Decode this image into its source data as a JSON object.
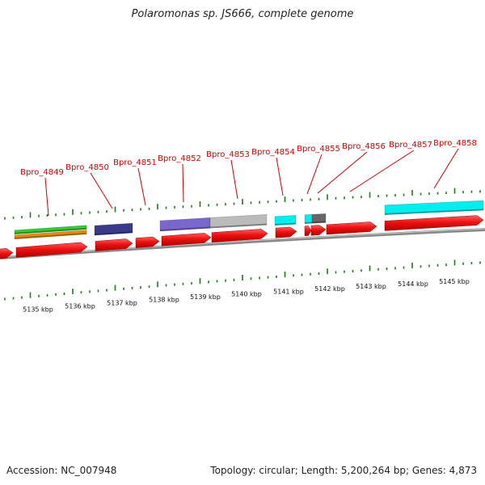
{
  "title": "Polaromonas sp. JS666, complete genome",
  "footer": {
    "accession": "Accession: NC_007948",
    "topology": "Topology: circular; Length: 5,200,264 bp; Genes: 4,873"
  },
  "kbp_labels": [
    "5135 kbp",
    "5136 kbp",
    "5137 kbp",
    "5138 kbp",
    "5139 kbp",
    "5140 kbp",
    "5141 kbp",
    "5142 kbp",
    "5143 kbp",
    "5144 kbp",
    "5145 kbp"
  ],
  "gene_labels": [
    "Bpro_4849",
    "Bpro_4850",
    "Bpro_4851",
    "Bpro_4852",
    "Bpro_4853",
    "Bpro_4854",
    "Bpro_4855",
    "Bpro_4856",
    "Bpro_4857",
    "Bpro_4858"
  ],
  "colors": {
    "gene": "#ee1111",
    "backbone": "#888888",
    "tick": "#1a7a1a",
    "label": "#cc0000",
    "green_bar": "#33cc33",
    "orange_bar": "#ee8800",
    "navy_bar": "#3a3a8a",
    "purple_bar": "#7a66cc",
    "grey_bar": "#bbbbbb",
    "cyan_bar": "#00eeee",
    "darkgrey_bar": "#666666"
  }
}
